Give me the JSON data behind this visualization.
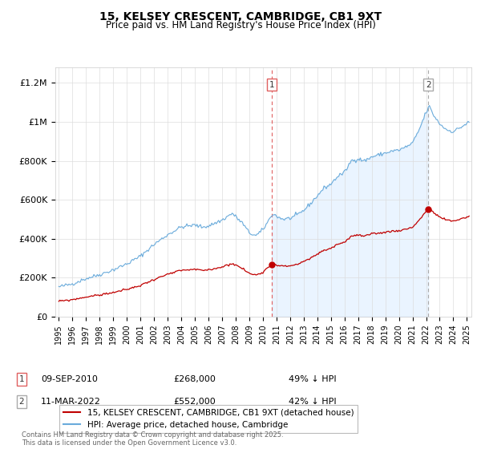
{
  "title": "15, KELSEY CRESCENT, CAMBRIDGE, CB1 9XT",
  "subtitle": "Price paid vs. HM Land Registry's House Price Index (HPI)",
  "ylabel_ticks": [
    "£0",
    "£200K",
    "£400K",
    "£600K",
    "£800K",
    "£1M",
    "£1.2M"
  ],
  "ylabel_values": [
    0,
    200000,
    400000,
    600000,
    800000,
    1000000,
    1200000
  ],
  "ylim": [
    0,
    1280000
  ],
  "hpi_color": "#6aabdb",
  "hpi_fill_color": "#ddeeff",
  "price_color": "#c00000",
  "vline1_color": "#e06060",
  "vline2_color": "#aaaaaa",
  "marker1_price": 268000,
  "marker1_date_str": "09-SEP-2010",
  "marker2_price": 552000,
  "marker2_date_str": "11-MAR-2022",
  "legend_property": "15, KELSEY CRESCENT, CAMBRIDGE, CB1 9XT (detached house)",
  "legend_hpi": "HPI: Average price, detached house, Cambridge",
  "footer": "Contains HM Land Registry data © Crown copyright and database right 2025.\nThis data is licensed under the Open Government Licence v3.0.",
  "background_color": "#ffffff",
  "grid_color": "#dddddd",
  "xlim_start_year": 1994,
  "xlim_end_year": 2025
}
